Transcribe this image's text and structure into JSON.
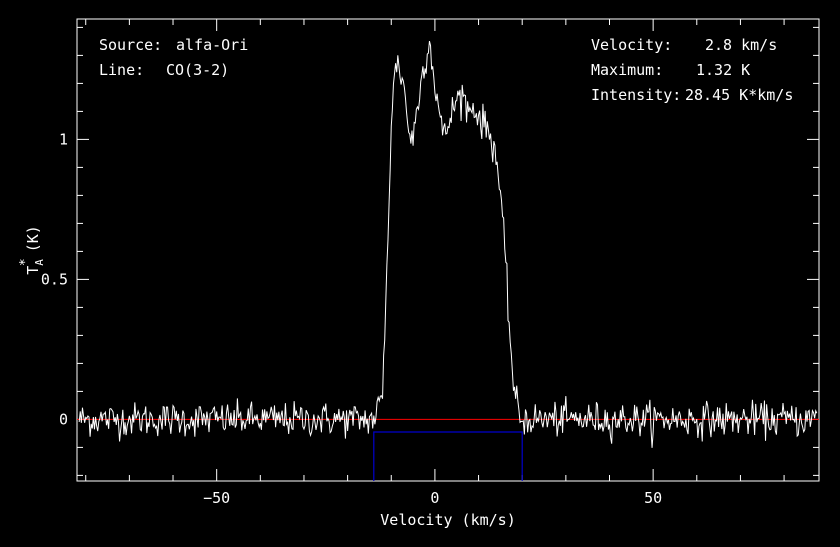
{
  "info": {
    "source_label": "Source:",
    "source_value": "alfa-Ori",
    "line_label": "Line:",
    "line_value": "CO(3-2)",
    "velocity_label": "Velocity:",
    "velocity_value": "2.8 km/s",
    "maximum_label": "Maximum:",
    "maximum_value": "1.32 K",
    "intensity_label": "Intensity:",
    "intensity_value": "28.45 K*km/s"
  },
  "chart_data": {
    "type": "line",
    "xlabel": "Velocity (km/s)",
    "ylabel_main": "T",
    "ylabel_sup": "*",
    "ylabel_sub": "A",
    "ylabel_unit": "(K)",
    "xlim": [
      -82,
      88
    ],
    "ylim": [
      -0.22,
      1.43
    ],
    "x_ticks": [
      -50,
      0,
      50
    ],
    "x_tick_labels": [
      "−50",
      "0",
      "50"
    ],
    "y_ticks": [
      0,
      0.5,
      1
    ],
    "y_tick_labels": [
      "0",
      "0.5",
      "1"
    ],
    "grid": false,
    "series": [
      {
        "values_profile": [
          [
            -82,
            0.0
          ],
          [
            -14,
            0.0
          ],
          [
            -12,
            0.08
          ],
          [
            -11,
            0.55
          ],
          [
            -10,
            1.05
          ],
          [
            -9,
            1.28
          ],
          [
            -8,
            1.25
          ],
          [
            -7,
            1.18
          ],
          [
            -6,
            1.03
          ],
          [
            -5,
            1.0
          ],
          [
            -4,
            1.12
          ],
          [
            -3,
            1.22
          ],
          [
            -2,
            1.3
          ],
          [
            -1.5,
            1.36
          ],
          [
            -1,
            1.32
          ],
          [
            0,
            1.2
          ],
          [
            1,
            1.1
          ],
          [
            2,
            1.0
          ],
          [
            3,
            1.05
          ],
          [
            4,
            1.1
          ],
          [
            5,
            1.14
          ],
          [
            6,
            1.17
          ],
          [
            7,
            1.13
          ],
          [
            8,
            1.1
          ],
          [
            9,
            1.12
          ],
          [
            10,
            1.08
          ],
          [
            11,
            1.06
          ],
          [
            12,
            1.04
          ],
          [
            13,
            1.0
          ],
          [
            14,
            0.95
          ],
          [
            15,
            0.8
          ],
          [
            16,
            0.6
          ],
          [
            17,
            0.35
          ],
          [
            18,
            0.12
          ],
          [
            19,
            0.03
          ],
          [
            20,
            0.0
          ],
          [
            88,
            0.0
          ]
        ],
        "noise_rms": 0.03,
        "color": "#ffffff"
      }
    ],
    "baseline": {
      "y": 0,
      "color": "#ff0000"
    },
    "window": {
      "x0": -14,
      "x1": 20,
      "ytop": -0.045,
      "color": "#0000cc"
    }
  }
}
